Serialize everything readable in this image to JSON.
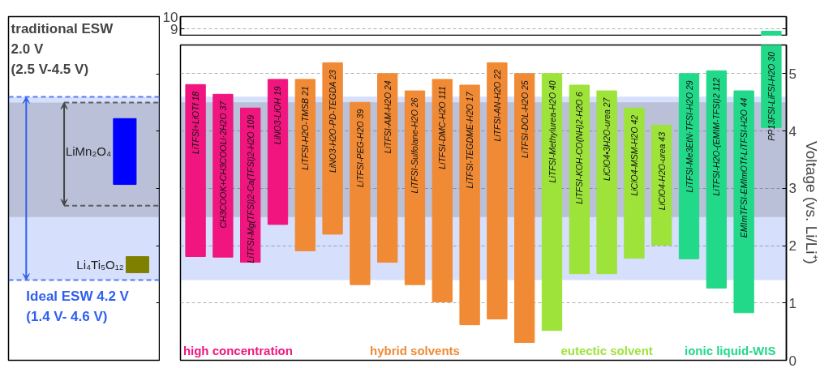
{
  "chart_data": [
    {
      "type": "bar",
      "categories": [
        null,
        null
      ],
      "annotations": [
        "LiMn₂O₄",
        "Li₄Ti₅O₁₂"
      ],
      "values": [
        1.15,
        0.28
      ],
      "base": [
        3.07,
        1.53
      ],
      "colors": [
        "#0000ff",
        "#808000"
      ],
      "tick_labels": false,
      "ylim": [
        0,
        6
      ],
      "yticks": [
        0,
        1,
        2,
        3,
        4,
        5
      ],
      "ref_lines": [
        {
          "axis": "y",
          "value": 4.6,
          "color": "#3060f0",
          "line_style": "dashed"
        },
        {
          "axis": "y",
          "value": 1.4,
          "color": "#3060f0",
          "line_style": "dashed"
        },
        {
          "axis": "y",
          "value": 4.5,
          "color": "#444444",
          "line_style": "dashed"
        },
        {
          "axis": "y",
          "value": 2.7,
          "color": "#444444",
          "line_style": "dashed"
        }
      ],
      "bands": [
        {
          "axis": "y",
          "from": 1.4,
          "to": 4.6,
          "label": "Ideal ESW 4.2 V\n(1.4 V- 4.6 V)",
          "color": "#3060f0"
        },
        {
          "axis": "y",
          "from": 2.5,
          "to": 4.5,
          "label": "traditional ESW\n2.0 V\n(2.5 V-4.5 V)",
          "color": "#444444"
        }
      ]
    },
    {
      "type": "bar",
      "ylabel": "Voltage (vs. Li/Li⁺)",
      "tick_labels": "y",
      "grid": "y",
      "ylim": [
        0,
        5.5
      ],
      "yticks": [
        0,
        1,
        2,
        3,
        4,
        5
      ],
      "categories": [
        "LiTFSI+LiOTf 18",
        "CH3COOK+CH3COOLi·2H2O 37",
        "LiTFSI-Mg(TFSI)2-Ca(TFSI)2-H2O 109",
        "LiNO3-LiOH 19",
        "LiTFSI-H2O-TMSB 21",
        "LiNO3-H2O-PD-TEGDA 23",
        "LiTFSI-PEG-H2O 39",
        "LiTFSI-AM-H2O 24",
        "LiTFSI-Sulfolane-H2O 26",
        "LiTFSI-DMC-H2O 111",
        "LiTFSI-TEGDME-H2O 17",
        "LiTFSI-AN-H2O 22",
        "LiTFSI-DOL-H2O 25",
        "LiTFSI-Methylurea-H2O 40",
        "LiTFSI-KOH-CO(NH)2-H2O 6",
        "LiClO4•3H2O-urea 27",
        "LiClO4-MSM-H2O 42",
        "LiClO4-H2O-urea 43",
        "LiTFSI-Me3EtN·TFSI-H2O 29",
        "LiTFSI-H2O-(EMIM-TFSI)2 112",
        "EMImTFSI-EMImOTf-LiTFSI-H2O 44",
        "PP13FSI-LiFSI-H2O 30"
      ],
      "base": [
        1.81,
        1.8,
        1.71,
        2.37,
        1.91,
        2.2,
        1.32,
        1.71,
        1.32,
        1.02,
        0.62,
        0.72,
        0.31,
        0.52,
        1.51,
        1.51,
        1.78,
        2.01,
        1.77,
        1.26,
        0.83,
        4.06
      ],
      "values": [
        3.0,
        2.84,
        2.69,
        2.53,
        2.99,
        2.99,
        3.18,
        3.29,
        3.38,
        3.88,
        4.18,
        4.47,
        4.69,
        4.48,
        3.29,
        3.19,
        2.62,
        2.09,
        3.23,
        3.79,
        3.87,
        1.44
      ],
      "colors": [
        "#f0157f",
        "#f0157f",
        "#f0157f",
        "#f0157f",
        "#f08a35",
        "#f08a35",
        "#f08a35",
        "#f08a35",
        "#f08a35",
        "#f08a35",
        "#f08a35",
        "#f08a35",
        "#f08a35",
        "#9de33a",
        "#9de33a",
        "#9de33a",
        "#9de33a",
        "#9de33a",
        "#22d98a",
        "#22d98a",
        "#22d98a",
        "#22d98a"
      ],
      "bands": [
        {
          "axis": "y",
          "from": 1.4,
          "to": 4.6,
          "color": "#3060f0"
        },
        {
          "axis": "y",
          "from": 2.5,
          "to": 4.5,
          "color": "#444444"
        }
      ],
      "annotations": [
        "high concentration",
        "hybrid solvents",
        "eutectic solvent",
        "ionic liquid-WIS"
      ]
    },
    {
      "type": "bar",
      "tick_labels": "y",
      "grid": "y",
      "ylim": [
        8.4,
        10
      ],
      "yticks": [
        9,
        10
      ],
      "categories": [
        null,
        null,
        null,
        null,
        null,
        null,
        null,
        null,
        null,
        null,
        null,
        null,
        null,
        null,
        null,
        null,
        null,
        null,
        null,
        null,
        null,
        null
      ],
      "base": [
        null,
        null,
        null,
        null,
        null,
        null,
        null,
        null,
        null,
        null,
        null,
        null,
        null,
        null,
        null,
        null,
        null,
        null,
        null,
        null,
        null,
        8.4
      ],
      "values": [
        null,
        null,
        null,
        null,
        null,
        null,
        null,
        null,
        null,
        null,
        null,
        null,
        null,
        null,
        null,
        null,
        null,
        null,
        null,
        null,
        null,
        0.4
      ],
      "color": "#22d98a"
    }
  ]
}
